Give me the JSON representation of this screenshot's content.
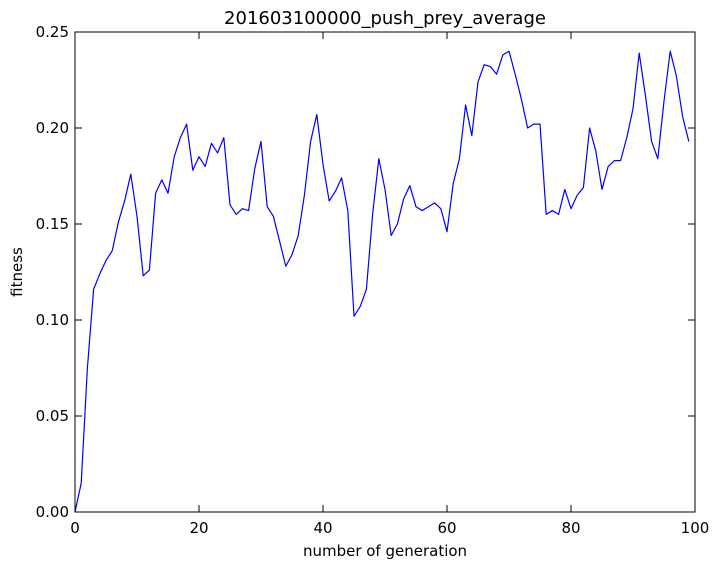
{
  "chart_data": {
    "type": "line",
    "title": "201603100000_push_prey_average",
    "xlabel": "number of generation",
    "ylabel": "fitness",
    "xlim": [
      0,
      100
    ],
    "ylim": [
      0,
      0.25
    ],
    "xticks": [
      "0",
      "20",
      "40",
      "60",
      "80",
      "100"
    ],
    "yticks": [
      "0.00",
      "0.05",
      "0.10",
      "0.15",
      "0.20",
      "0.25"
    ],
    "grid": false,
    "series": [
      {
        "color": "#0000ff",
        "x": [
          0,
          1,
          2,
          3,
          4,
          5,
          6,
          7,
          8,
          9,
          10,
          11,
          12,
          13,
          14,
          15,
          16,
          17,
          18,
          19,
          20,
          21,
          22,
          23,
          24,
          25,
          26,
          27,
          28,
          29,
          30,
          31,
          32,
          33,
          34,
          35,
          36,
          37,
          38,
          39,
          40,
          41,
          42,
          43,
          44,
          45,
          46,
          47,
          48,
          49,
          50,
          51,
          52,
          53,
          54,
          55,
          56,
          57,
          58,
          59,
          60,
          61,
          62,
          63,
          64,
          65,
          66,
          67,
          68,
          69,
          70,
          71,
          72,
          73,
          74,
          75,
          76,
          77,
          78,
          79,
          80,
          81,
          82,
          83,
          84,
          85,
          86,
          87,
          88,
          89,
          90,
          91,
          92,
          93,
          94,
          95,
          96,
          97,
          98,
          99
        ],
        "values": [
          0.0,
          0.015,
          0.075,
          0.116,
          0.124,
          0.131,
          0.136,
          0.151,
          0.162,
          0.176,
          0.154,
          0.123,
          0.126,
          0.166,
          0.173,
          0.166,
          0.185,
          0.195,
          0.202,
          0.178,
          0.185,
          0.18,
          0.192,
          0.187,
          0.195,
          0.16,
          0.155,
          0.158,
          0.157,
          0.179,
          0.193,
          0.159,
          0.154,
          0.141,
          0.128,
          0.134,
          0.144,
          0.165,
          0.193,
          0.207,
          0.181,
          0.162,
          0.167,
          0.174,
          0.157,
          0.102,
          0.107,
          0.116,
          0.155,
          0.184,
          0.168,
          0.144,
          0.15,
          0.163,
          0.17,
          0.159,
          0.157,
          0.159,
          0.161,
          0.158,
          0.146,
          0.171,
          0.184,
          0.212,
          0.196,
          0.224,
          0.233,
          0.232,
          0.228,
          0.238,
          0.24,
          0.228,
          0.215,
          0.2,
          0.202,
          0.202,
          0.155,
          0.157,
          0.155,
          0.168,
          0.158,
          0.165,
          0.169,
          0.2,
          0.188,
          0.168,
          0.18,
          0.183,
          0.183,
          0.195,
          0.21,
          0.239,
          0.217,
          0.193,
          0.184,
          0.214,
          0.24,
          0.227,
          0.206,
          0.193
        ]
      }
    ]
  }
}
